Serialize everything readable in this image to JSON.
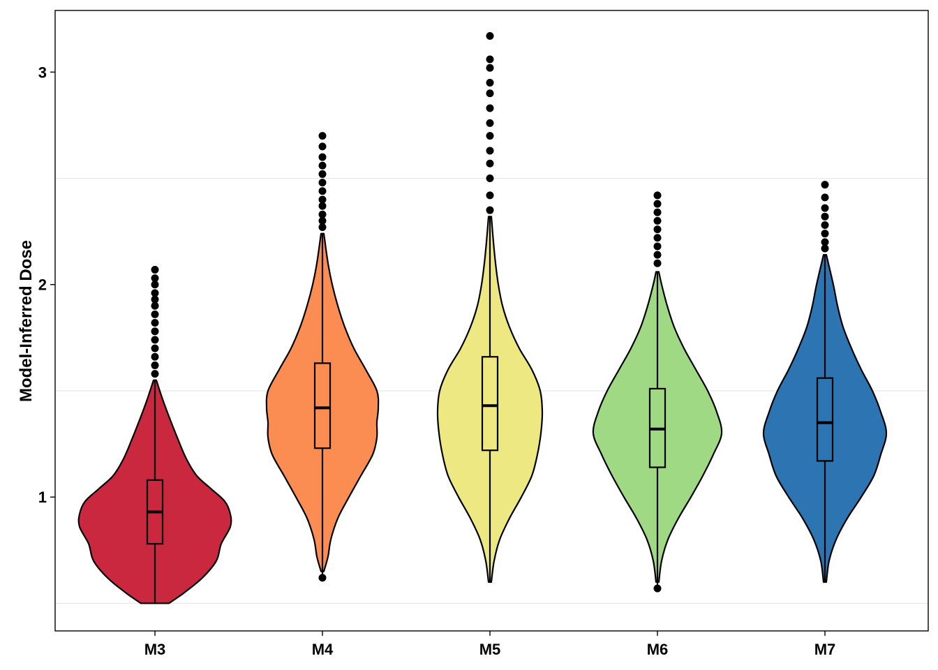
{
  "chart_data": {
    "type": "violin",
    "title": "",
    "xlabel": "",
    "ylabel": "Model-Inferred Dose",
    "ylim": [
      0.37,
      3.29
    ],
    "y_ticks": [
      1,
      2,
      3
    ],
    "y_tick_labels": [
      "1",
      "2",
      "3"
    ],
    "minor_gridlines": [
      0.5,
      1.5,
      2.5
    ],
    "categories": [
      "M3",
      "M4",
      "M5",
      "M6",
      "M7"
    ],
    "series": [
      {
        "name": "M3",
        "color": "#C9283E",
        "box": {
          "q1": 0.78,
          "median": 0.93,
          "q3": 1.08
        },
        "whisker": [
          0.5,
          1.55
        ],
        "outliers": [
          1.58,
          1.62,
          1.66,
          1.7,
          1.74,
          1.78,
          1.82,
          1.86,
          1.9,
          1.93,
          1.96,
          2.0,
          2.03,
          2.07
        ],
        "density_y": [
          0.5,
          0.55,
          0.62,
          0.7,
          0.78,
          0.86,
          0.92,
          0.98,
          1.04,
          1.1,
          1.18,
          1.28,
          1.38,
          1.46,
          1.55
        ],
        "density_hw": [
          20,
          42,
          68,
          88,
          95,
          108,
          108,
          100,
          80,
          60,
          45,
          32,
          20,
          11,
          2
        ]
      },
      {
        "name": "M4",
        "color": "#FC8D52",
        "box": {
          "q1": 1.23,
          "median": 1.42,
          "q3": 1.63
        },
        "whisker": [
          0.62,
          2.24
        ],
        "outliers": [
          0.62,
          2.27,
          2.3,
          2.33,
          2.37,
          2.4,
          2.44,
          2.48,
          2.52,
          2.56,
          2.6,
          2.65,
          2.7
        ],
        "density_y": [
          0.65,
          0.72,
          0.8,
          0.9,
          1.0,
          1.1,
          1.2,
          1.28,
          1.35,
          1.42,
          1.5,
          1.6,
          1.7,
          1.8,
          1.9,
          2.0,
          2.1,
          2.24
        ],
        "density_hw": [
          2,
          8,
          12,
          22,
          38,
          55,
          72,
          78,
          78,
          80,
          78,
          62,
          45,
          32,
          22,
          14,
          8,
          2
        ]
      },
      {
        "name": "M5",
        "color": "#EEE882",
        "box": {
          "q1": 1.22,
          "median": 1.43,
          "q3": 1.66
        },
        "whisker": [
          0.6,
          2.32
        ],
        "outliers": [
          2.35,
          2.42,
          2.5,
          2.57,
          2.63,
          2.7,
          2.76,
          2.83,
          2.9,
          2.95,
          3.02,
          3.06,
          3.17
        ],
        "density_y": [
          0.6,
          0.7,
          0.8,
          0.9,
          1.0,
          1.1,
          1.2,
          1.3,
          1.4,
          1.5,
          1.6,
          1.7,
          1.8,
          1.9,
          2.0,
          2.1,
          2.2,
          2.32
        ],
        "density_hw": [
          2,
          6,
          14,
          28,
          45,
          60,
          68,
          73,
          75,
          72,
          60,
          42,
          28,
          18,
          12,
          8,
          5,
          2
        ]
      },
      {
        "name": "M6",
        "color": "#A0D984",
        "box": {
          "q1": 1.14,
          "median": 1.32,
          "q3": 1.51
        },
        "whisker": [
          0.57,
          2.06
        ],
        "outliers": [
          0.57,
          2.1,
          2.14,
          2.18,
          2.22,
          2.26,
          2.3,
          2.34,
          2.38,
          2.42
        ],
        "density_y": [
          0.6,
          0.7,
          0.8,
          0.9,
          1.0,
          1.1,
          1.2,
          1.3,
          1.4,
          1.5,
          1.6,
          1.7,
          1.8,
          1.9,
          2.0,
          2.06
        ],
        "density_hw": [
          2,
          6,
          15,
          30,
          48,
          65,
          80,
          92,
          85,
          72,
          55,
          38,
          24,
          14,
          6,
          2
        ]
      },
      {
        "name": "M7",
        "color": "#2C74B2",
        "box": {
          "q1": 1.17,
          "median": 1.35,
          "q3": 1.56
        },
        "whisker": [
          0.6,
          2.14
        ],
        "outliers": [
          2.17,
          2.2,
          2.24,
          2.28,
          2.32,
          2.36,
          2.41,
          2.47
        ],
        "density_y": [
          0.6,
          0.7,
          0.8,
          0.9,
          1.0,
          1.1,
          1.2,
          1.3,
          1.4,
          1.5,
          1.6,
          1.7,
          1.8,
          1.9,
          2.0,
          2.14
        ],
        "density_hw": [
          2,
          6,
          16,
          32,
          52,
          70,
          80,
          88,
          80,
          68,
          52,
          38,
          26,
          18,
          12,
          2
        ]
      }
    ]
  }
}
